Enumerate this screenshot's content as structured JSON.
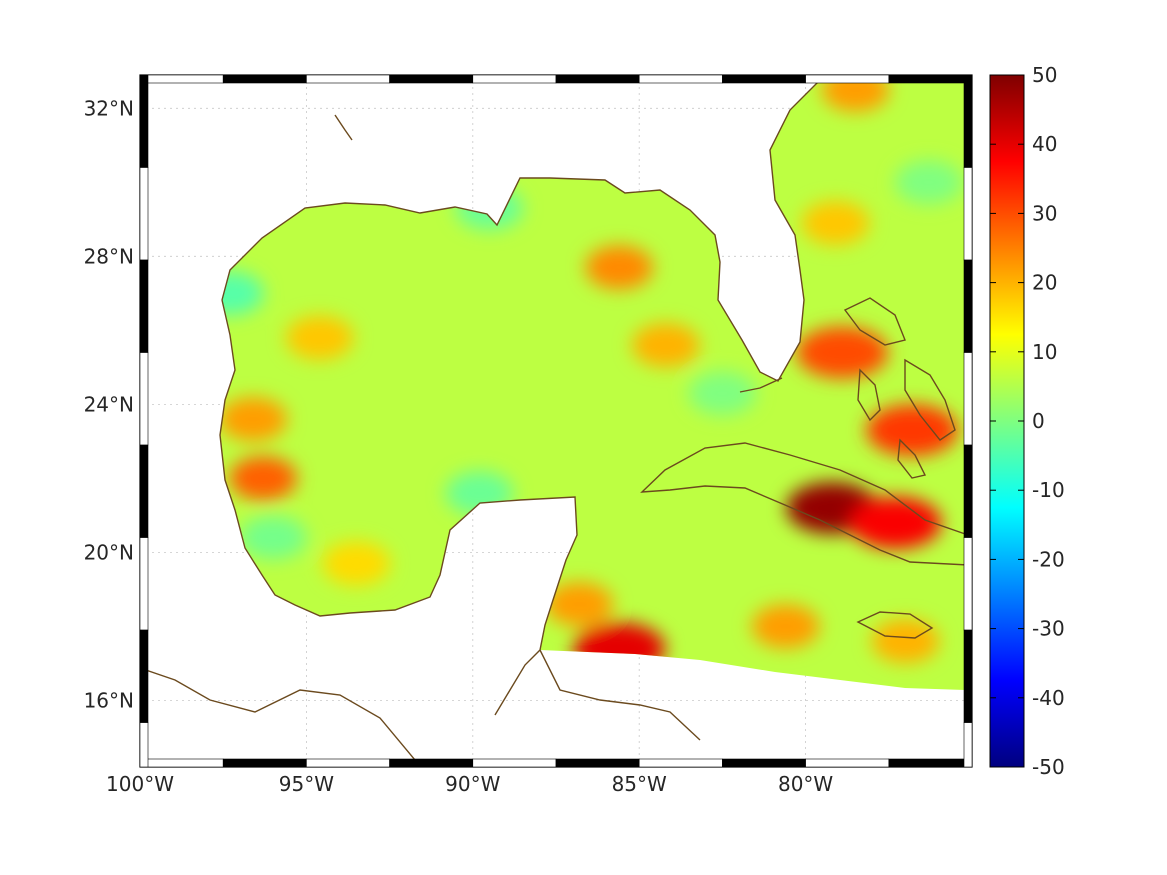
{
  "map": {
    "projection": "equirectangular",
    "lon_range": [
      -100,
      -75
    ],
    "lat_range": [
      14.2,
      32.9
    ],
    "lon_ticks": [
      {
        "value": -100,
        "label": "100°W"
      },
      {
        "value": -95,
        "label": "95°W"
      },
      {
        "value": -90,
        "label": "90°W"
      },
      {
        "value": -85,
        "label": "85°W"
      },
      {
        "value": -80,
        "label": "80°W"
      }
    ],
    "lat_ticks": [
      {
        "value": 16,
        "label": "16°N"
      },
      {
        "value": 20,
        "label": "20°N"
      },
      {
        "value": 24,
        "label": "24°N"
      },
      {
        "value": 28,
        "label": "28°N"
      },
      {
        "value": 32,
        "label": "32°N"
      }
    ],
    "grid": true,
    "coastline_color": "#6b4a1e",
    "field_colormap": "jet",
    "field_range": [
      -50,
      50
    ],
    "field_mean": 6,
    "hotspots": [
      {
        "name": "cuba-jamaica-gap",
        "lon": -79.2,
        "lat": 21.2,
        "value": 48
      },
      {
        "name": "southeast-cuba",
        "lon": -77.3,
        "lat": 20.8,
        "value": 38
      },
      {
        "name": "bahamas-north",
        "lon": -78.9,
        "lat": 25.4,
        "value": 30
      },
      {
        "name": "bahamas-south",
        "lon": -76.8,
        "lat": 23.3,
        "value": 32
      },
      {
        "name": "honduras-coast",
        "lon": -85.6,
        "lat": 17.4,
        "value": 40
      },
      {
        "name": "yucatan-channel",
        "lon": -86.8,
        "lat": 18.6,
        "value": 22
      },
      {
        "name": "west-gulf-1",
        "lon": -96.3,
        "lat": 22.0,
        "value": 28
      },
      {
        "name": "west-gulf-2",
        "lon": -96.6,
        "lat": 23.6,
        "value": 22
      },
      {
        "name": "central-gulf",
        "lon": -85.6,
        "lat": 27.7,
        "value": 24
      },
      {
        "name": "east-gulf",
        "lon": -84.2,
        "lat": 25.6,
        "value": 20
      },
      {
        "name": "atlantic-north",
        "lon": -78.5,
        "lat": 32.5,
        "value": 22
      },
      {
        "name": "atlantic-mid",
        "lon": -79.1,
        "lat": 28.9,
        "value": 18
      },
      {
        "name": "caribbean-south",
        "lon": -80.6,
        "lat": 18.0,
        "value": 22
      },
      {
        "name": "jamaica-east",
        "lon": -77.0,
        "lat": 17.6,
        "value": 20
      },
      {
        "name": "west-gulf-3",
        "lon": -94.6,
        "lat": 25.8,
        "value": 18
      },
      {
        "name": "campeche",
        "lon": -93.5,
        "lat": 19.7,
        "value": 16
      }
    ],
    "coldspots": [
      {
        "name": "texas-shelf",
        "lon": -97.3,
        "lat": 27.0,
        "value": -4
      },
      {
        "name": "mississippi-delta",
        "lon": -89.5,
        "lat": 29.3,
        "value": -2
      },
      {
        "name": "yucatan-north",
        "lon": -89.8,
        "lat": 21.6,
        "value": -2
      },
      {
        "name": "veracruz",
        "lon": -96.0,
        "lat": 20.4,
        "value": -1
      },
      {
        "name": "florida-strait-west",
        "lon": -82.5,
        "lat": 24.3,
        "value": 0
      },
      {
        "name": "atlantic-east",
        "lon": -76.3,
        "lat": 30.0,
        "value": 0
      }
    ]
  },
  "colorbar": {
    "min": -50,
    "max": 50,
    "ticks": [
      {
        "value": 50,
        "label": "50"
      },
      {
        "value": 40,
        "label": "40"
      },
      {
        "value": 30,
        "label": "30"
      },
      {
        "value": 20,
        "label": "20"
      },
      {
        "value": 10,
        "label": "10"
      },
      {
        "value": 0,
        "label": "0"
      },
      {
        "value": -10,
        "label": "-10"
      },
      {
        "value": -20,
        "label": "-20"
      },
      {
        "value": -30,
        "label": "-30"
      },
      {
        "value": -40,
        "label": "-40"
      },
      {
        "value": -50,
        "label": "-50"
      }
    ]
  }
}
